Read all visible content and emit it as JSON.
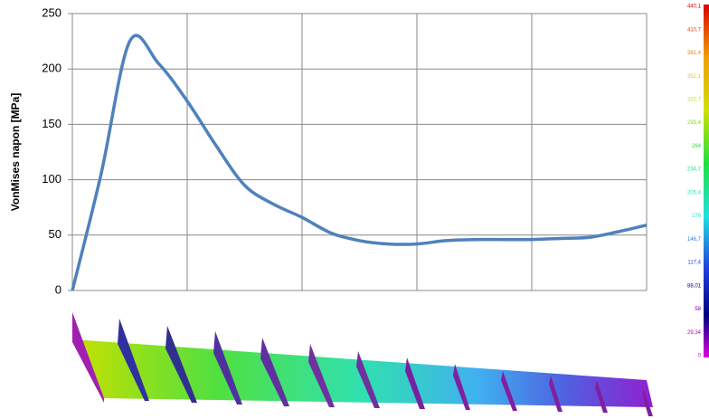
{
  "chart_data": {
    "type": "line",
    "y_label": "VonMises napon [MPa]",
    "categories": [
      null,
      null,
      null,
      null,
      null,
      null,
      null,
      null,
      null,
      null,
      null,
      null,
      null,
      null,
      null,
      null,
      null,
      null,
      null,
      null,
      null
    ],
    "series": [
      {
        "name": null,
        "color": "#4f81bd",
        "values": [
          0,
          105,
          225,
          205,
          171,
          131,
          95,
          78,
          66,
          52,
          45,
          42,
          42,
          45,
          46,
          46,
          46,
          47,
          48,
          53,
          59
        ]
      }
    ],
    "ylim": [
      0,
      250
    ],
    "yticks": [
      0,
      50,
      100,
      150,
      200,
      250
    ],
    "grid": true,
    "color_scale": {
      "labels": [
        "440,1",
        "410,7",
        "381,4",
        "352,1",
        "322,7",
        "293,4",
        "264",
        "234,7",
        "205,4",
        "176",
        "146,7",
        "117,4",
        "88,01",
        "58",
        "29,34",
        "0"
      ]
    }
  }
}
